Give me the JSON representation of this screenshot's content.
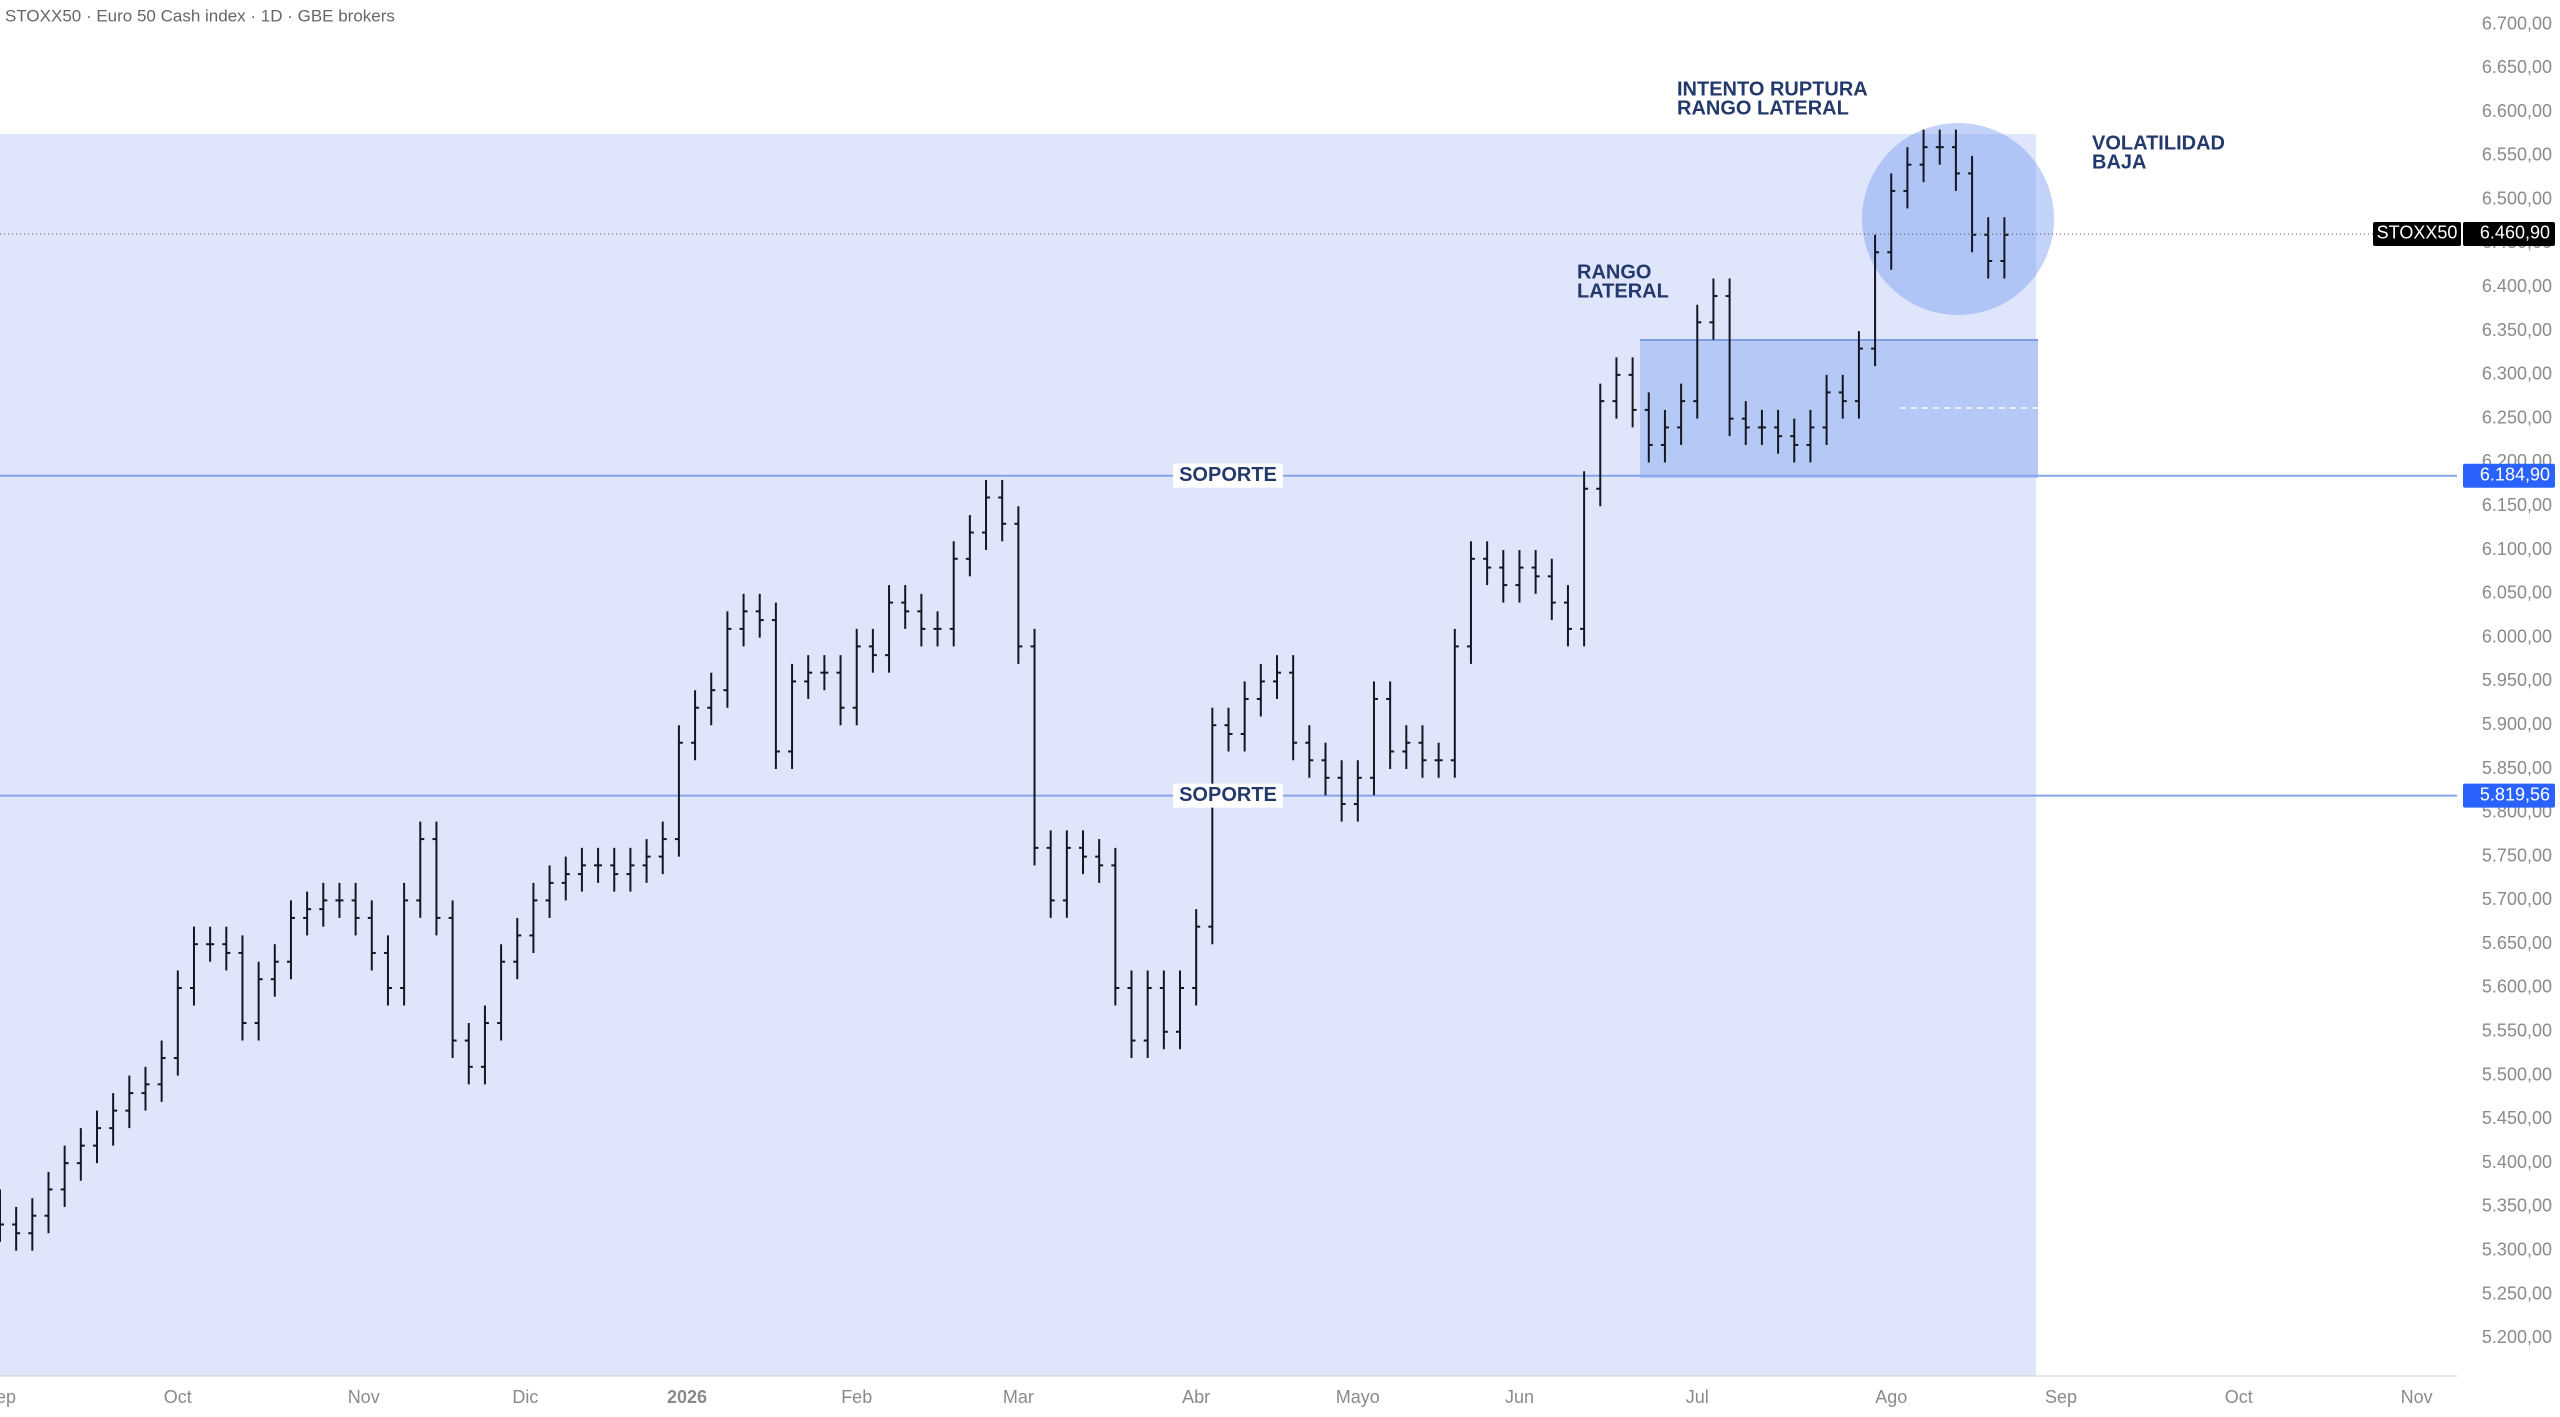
{
  "chart_data": {
    "type": "ohlc",
    "title": "STOXX50 · Euro 50 Cash index · 1D · GBE brokers",
    "color": "#131722",
    "x": [
      0,
      2,
      4,
      6,
      8,
      10,
      12,
      14,
      16,
      18,
      20,
      22,
      24,
      26,
      28,
      30,
      32,
      34,
      36,
      38,
      40,
      42,
      44,
      46,
      48,
      50,
      52,
      54,
      56,
      58,
      60,
      62,
      64,
      66,
      68,
      70,
      72,
      74,
      76,
      78,
      80,
      82,
      84,
      86,
      88,
      90,
      92,
      94,
      96,
      98,
      100,
      102,
      104,
      106,
      108,
      110,
      112,
      114,
      116,
      118,
      120,
      122,
      124,
      126,
      128,
      130,
      132,
      134,
      136,
      138,
      140,
      142,
      144,
      146,
      148,
      150,
      152,
      154,
      156,
      158,
      160,
      162,
      164,
      166,
      168,
      170,
      172,
      174,
      176,
      178,
      180,
      182,
      184,
      186,
      188,
      190,
      192,
      194,
      196,
      198,
      200,
      202,
      204,
      206,
      208,
      210,
      212,
      214,
      216,
      218,
      220,
      222,
      224,
      226,
      228,
      230,
      232,
      234,
      236,
      238,
      240,
      242,
      244,
      246,
      248
    ],
    "open": [
      5350,
      5330,
      5320,
      5340,
      5370,
      5400,
      5420,
      5440,
      5460,
      5480,
      5490,
      5520,
      5600,
      5650,
      5650,
      5640,
      5560,
      5610,
      5630,
      5680,
      5690,
      5700,
      5700,
      5680,
      5640,
      5600,
      5700,
      5770,
      5680,
      5540,
      5510,
      5560,
      5630,
      5660,
      5700,
      5720,
      5730,
      5740,
      5740,
      5730,
      5740,
      5750,
      5770,
      5880,
      5920,
      5940,
      6010,
      6030,
      6020,
      5870,
      5950,
      5960,
      5960,
      5920,
      5990,
      5980,
      6040,
      6030,
      6010,
      6010,
      6090,
      6120,
      6160,
      6130,
      5990,
      5760,
      5700,
      5760,
      5750,
      5740,
      5600,
      5540,
      5600,
      5550,
      5600,
      5670,
      5900,
      5890,
      5930,
      5950,
      5960,
      5880,
      5860,
      5840,
      5810,
      5840,
      5930,
      5870,
      5880,
      5860,
      5860,
      5990,
      6090,
      6080,
      6060,
      6080,
      6070,
      6040,
      6010,
      6170,
      6270,
      6300,
      6260,
      6220,
      6240,
      6270,
      6360,
      6390,
      6250,
      6240,
      6240,
      6230,
      6220,
      6240,
      6280,
      6270,
      6330,
      6440,
      6510,
      6540,
      6560,
      6560,
      6530,
      6460,
      6430
    ],
    "high": [
      5370,
      5350,
      5360,
      5390,
      5420,
      5440,
      5460,
      5480,
      5500,
      5510,
      5540,
      5620,
      5670,
      5670,
      5670,
      5660,
      5630,
      5650,
      5700,
      5710,
      5720,
      5720,
      5720,
      5700,
      5660,
      5720,
      5790,
      5790,
      5700,
      5560,
      5580,
      5650,
      5680,
      5720,
      5740,
      5750,
      5760,
      5760,
      5760,
      5760,
      5770,
      5790,
      5900,
      5940,
      5960,
      6030,
      6050,
      6050,
      6040,
      5970,
      5980,
      5980,
      5980,
      6010,
      6010,
      6060,
      6060,
      6050,
      6030,
      6110,
      6140,
      6180,
      6180,
      6150,
      6010,
      5780,
      5780,
      5780,
      5770,
      5760,
      5620,
      5620,
      5620,
      5620,
      5690,
      5920,
      5920,
      5950,
      5970,
      5980,
      5980,
      5900,
      5880,
      5860,
      5860,
      5950,
      5950,
      5900,
      5900,
      5880,
      6010,
      6110,
      6110,
      6100,
      6100,
      6100,
      6090,
      6060,
      6190,
      6290,
      6320,
      6320,
      6280,
      6260,
      6290,
      6380,
      6410,
      6410,
      6270,
      6260,
      6260,
      6250,
      6260,
      6300,
      6300,
      6350,
      6460,
      6530,
      6560,
      6580,
      6580,
      6580,
      6550,
      6480,
      6480
    ],
    "low": [
      5310,
      5300,
      5300,
      5320,
      5350,
      5380,
      5400,
      5420,
      5440,
      5460,
      5470,
      5500,
      5580,
      5630,
      5620,
      5540,
      5540,
      5590,
      5610,
      5660,
      5670,
      5680,
      5660,
      5620,
      5580,
      5580,
      5680,
      5660,
      5520,
      5490,
      5490,
      5540,
      5610,
      5640,
      5680,
      5700,
      5710,
      5720,
      5710,
      5710,
      5720,
      5730,
      5750,
      5860,
      5900,
      5920,
      5990,
      6000,
      5850,
      5850,
      5930,
      5940,
      5900,
      5900,
      5960,
      5960,
      6010,
      5990,
      5990,
      5990,
      6070,
      6100,
      6110,
      5970,
      5740,
      5680,
      5680,
      5730,
      5720,
      5580,
      5520,
      5520,
      5530,
      5530,
      5580,
      5650,
      5870,
      5870,
      5910,
      5930,
      5860,
      5840,
      5820,
      5790,
      5790,
      5820,
      5850,
      5850,
      5840,
      5840,
      5840,
      5970,
      6060,
      6040,
      6040,
      6050,
      6020,
      5990,
      5990,
      6150,
      6250,
      6240,
      6200,
      6200,
      6220,
      6250,
      6340,
      6230,
      6220,
      6220,
      6210,
      6200,
      6200,
      6220,
      6250,
      6250,
      6310,
      6420,
      6490,
      6520,
      6540,
      6510,
      6440,
      6410,
      6410
    ],
    "close": [
      5330,
      5320,
      5340,
      5370,
      5400,
      5420,
      5440,
      5460,
      5480,
      5490,
      5520,
      5600,
      5650,
      5650,
      5640,
      5560,
      5610,
      5630,
      5680,
      5690,
      5700,
      5700,
      5680,
      5640,
      5600,
      5700,
      5770,
      5680,
      5540,
      5510,
      5560,
      5630,
      5660,
      5700,
      5720,
      5730,
      5740,
      5740,
      5730,
      5740,
      5750,
      5770,
      5880,
      5920,
      5940,
      6010,
      6030,
      6020,
      5870,
      5950,
      5960,
      5960,
      5920,
      5990,
      5980,
      6040,
      6030,
      6010,
      6010,
      6090,
      6120,
      6160,
      6130,
      5990,
      5760,
      5700,
      5760,
      5750,
      5740,
      5600,
      5540,
      5600,
      5550,
      5600,
      5670,
      5900,
      5890,
      5930,
      5950,
      5960,
      5880,
      5860,
      5840,
      5810,
      5840,
      5930,
      5870,
      5880,
      5860,
      5860,
      5990,
      6090,
      6080,
      6060,
      6080,
      6070,
      6040,
      6010,
      6170,
      6270,
      6300,
      6260,
      6220,
      6240,
      6270,
      6360,
      6390,
      6250,
      6240,
      6240,
      6230,
      6220,
      6240,
      6280,
      6270,
      6330,
      6440,
      6510,
      6540,
      6560,
      6560,
      6530,
      6460,
      6430,
      6460
    ],
    "xlim": [
      0,
      304
    ],
    "ylim": [
      5157,
      6728
    ],
    "xticks": [
      {
        "value": 0,
        "label": "Sep"
      },
      {
        "value": 22,
        "label": "Oct"
      },
      {
        "value": 45,
        "label": "Nov"
      },
      {
        "value": 65,
        "label": "Dic"
      },
      {
        "value": 85,
        "label": "2026"
      },
      {
        "value": 106,
        "label": "Feb"
      },
      {
        "value": 126,
        "label": "Mar"
      },
      {
        "value": 148,
        "label": "Abr"
      },
      {
        "value": 168,
        "label": "Mayo"
      },
      {
        "value": 188,
        "label": "Jun"
      },
      {
        "value": 210,
        "label": "Jul"
      },
      {
        "value": 234,
        "label": "Ago"
      },
      {
        "value": 255,
        "label": "Sep"
      },
      {
        "value": 277,
        "label": "Oct"
      },
      {
        "value": 299,
        "label": "Nov"
      }
    ],
    "yticks": [
      {
        "value": 5200,
        "label": "5.200,00"
      },
      {
        "value": 5250,
        "label": "5.250,00"
      },
      {
        "value": 5300,
        "label": "5.300,00"
      },
      {
        "value": 5350,
        "label": "5.350,00"
      },
      {
        "value": 5400,
        "label": "5.400,00"
      },
      {
        "value": 5450,
        "label": "5.450,00"
      },
      {
        "value": 5500,
        "label": "5.500,00"
      },
      {
        "value": 5550,
        "label": "5.550,00"
      },
      {
        "value": 5600,
        "label": "5.600,00"
      },
      {
        "value": 5650,
        "label": "5.650,00"
      },
      {
        "value": 5700,
        "label": "5.700,00"
      },
      {
        "value": 5750,
        "label": "5.750,00"
      },
      {
        "value": 5800,
        "label": "5.800,00"
      },
      {
        "value": 5850,
        "label": "5.850,00"
      },
      {
        "value": 5900,
        "label": "5.900,00"
      },
      {
        "value": 5950,
        "label": "5.950,00"
      },
      {
        "value": 6000,
        "label": "6.000,00"
      },
      {
        "value": 6050,
        "label": "6.050,00"
      },
      {
        "value": 6100,
        "label": "6.100,00"
      },
      {
        "value": 6150,
        "label": "6.150,00"
      },
      {
        "value": 6200,
        "label": "6.200,00"
      },
      {
        "value": 6250,
        "label": "6.250,00"
      },
      {
        "value": 6300,
        "label": "6.300,00"
      },
      {
        "value": 6350,
        "label": "6.350,00"
      },
      {
        "value": 6400,
        "label": "6.400,00"
      },
      {
        "value": 6450,
        "label": "6.450,00"
      },
      {
        "value": 6500,
        "label": "6.500,00"
      },
      {
        "value": 6550,
        "label": "6.550,00"
      },
      {
        "value": 6600,
        "label": "6.600,00"
      },
      {
        "value": 6650,
        "label": "6.650,00"
      },
      {
        "value": 6700,
        "label": "6.700,00"
      }
    ],
    "levels": [
      {
        "value": 6184.9,
        "label": "6.184,90",
        "text": "SOPORTE"
      },
      {
        "value": 5819.56,
        "label": "5.819,56",
        "text": "SOPORTE"
      }
    ],
    "last_price": {
      "value": 6460.9,
      "label": "6.460,90",
      "symbol": "STOXX50"
    },
    "annotations": [
      [
        "INTENTO RUPTURA",
        "RANGO LATERAL"
      ],
      [
        "RANGO",
        "LATERAL"
      ],
      [
        "VOLATILIDAD",
        "BAJA"
      ]
    ]
  }
}
